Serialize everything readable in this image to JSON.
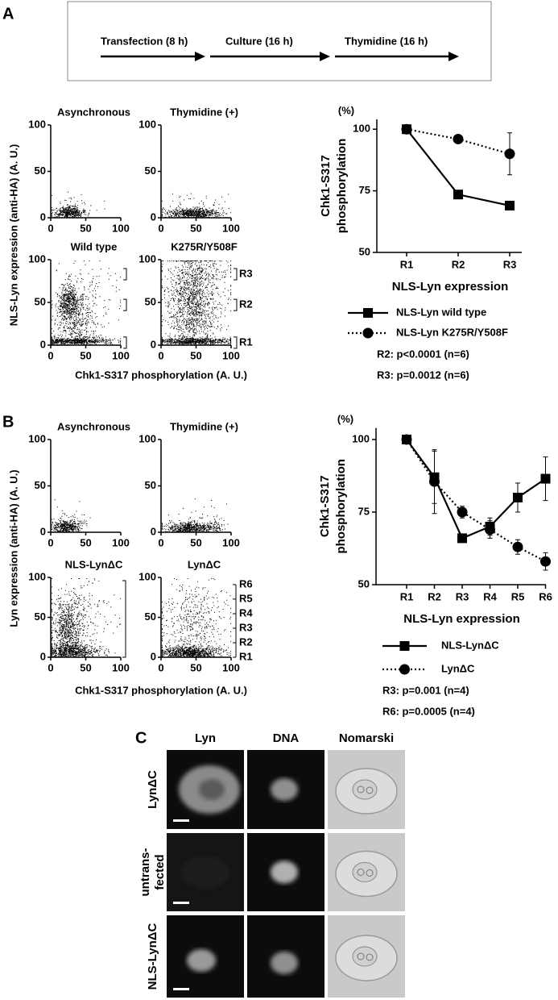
{
  "panel_labels": [
    "A",
    "B",
    "C"
  ],
  "timeline": [
    "Transfection (8 h)",
    "Culture (16 h)",
    "Thymidine (16 h)"
  ],
  "scatter_panels": [
    {
      "y_label": "NLS-Lyn expression (anti-HA) (A. U.)",
      "x_label": "Chk1-S317 phosphorylation (A. U.)",
      "xlim": [
        0,
        100
      ],
      "ylim": [
        0,
        100
      ],
      "xticks": [
        0,
        50,
        100
      ],
      "yticks": [
        0,
        50,
        100
      ],
      "plots": [
        {
          "title": "Asynchronous"
        },
        {
          "title": "Thymidine (+)"
        },
        {
          "title": "Wild type"
        },
        {
          "title": "K275R/Y508F",
          "regions": [
            "R3",
            "R2",
            "R1"
          ]
        }
      ]
    },
    {
      "y_label": "Lyn expression (anti-HA) (A. U.)",
      "x_label": "Chk1-S317 phosphorylation (A. U.)",
      "xlim": [
        0,
        100
      ],
      "ylim": [
        0,
        100
      ],
      "xticks": [
        0,
        50,
        100
      ],
      "yticks": [
        0,
        50,
        100
      ],
      "plots": [
        {
          "title": "Asynchronous"
        },
        {
          "title": "Thymidine (+)"
        },
        {
          "title": "NLS-LynΔC"
        },
        {
          "title": "LynΔC",
          "regions": [
            "R6",
            "R5",
            "R4",
            "R3",
            "R2",
            "R1"
          ]
        }
      ]
    }
  ],
  "chart_data": [
    {
      "type": "line",
      "unit": "(%)",
      "y_label": [
        "Chk1-S317",
        "phosphorylation"
      ],
      "x_label": "NLS-Lyn expression",
      "categories": [
        "R1",
        "R2",
        "R3"
      ],
      "ylim": [
        50,
        104
      ],
      "yticks": [
        50,
        75,
        100
      ],
      "series": [
        {
          "name": "NLS-Lyn wild type",
          "color": "#000000",
          "dash": "solid",
          "marker": "square",
          "values": [
            100,
            73.5,
            69
          ],
          "errors": [
            0,
            1,
            1.2
          ]
        },
        {
          "name": "NLS-Lyn K275R/Y508F",
          "color": "#000000",
          "dash": "dotted",
          "marker": "circle",
          "values": [
            100,
            96,
            90
          ],
          "errors": [
            0,
            1.5,
            8.5
          ]
        }
      ],
      "annotations": [
        "R2: p<0.0001 (n=6)",
        "R3: p=0.0012 (n=6)"
      ]
    },
    {
      "type": "line",
      "unit": "(%)",
      "y_label": [
        "Chk1-S317",
        "phosphorylation"
      ],
      "x_label": "NLS-Lyn expression",
      "categories": [
        "R1",
        "R2",
        "R3",
        "R4",
        "R5",
        "R6"
      ],
      "ylim": [
        50,
        104
      ],
      "yticks": [
        50,
        75,
        100
      ],
      "series": [
        {
          "name": "NLS-LynΔC",
          "color": "#000000",
          "dash": "solid",
          "marker": "square",
          "values": [
            100,
            87,
            66,
            70,
            80,
            86.5
          ],
          "errors": [
            0,
            9,
            1.5,
            3,
            5,
            7.5
          ]
        },
        {
          "name": "LynΔC",
          "color": "#000000",
          "dash": "dotted",
          "marker": "circle",
          "values": [
            100,
            85.5,
            75,
            69,
            63,
            58
          ],
          "errors": [
            0,
            11,
            2,
            3,
            2.5,
            3
          ]
        }
      ],
      "annotations": [
        "R3: p=0.001 (n=4)",
        "R6: p=0.0005 (n=4)"
      ]
    }
  ],
  "micrographs": {
    "columns": [
      "Lyn",
      "DNA",
      "Nomarski"
    ],
    "rows": [
      [
        "LynΔC"
      ],
      [
        "untrans-",
        "fected"
      ],
      [
        "NLS-LynΔC"
      ]
    ]
  }
}
